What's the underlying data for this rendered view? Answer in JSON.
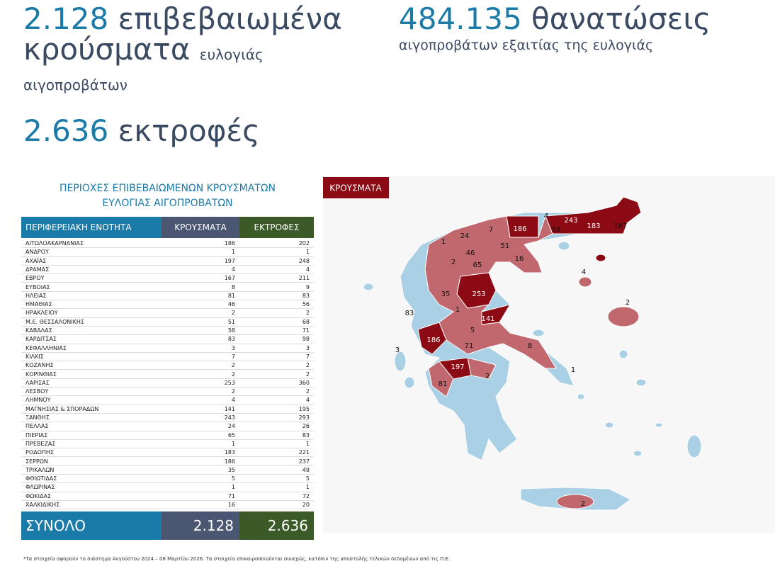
{
  "stats": [
    {
      "number": "2.128",
      "text": "επιβεβαιωμένα κρούσματα",
      "sub": "ευλογιάς αιγοπροβάτων"
    },
    {
      "number": "484.135",
      "text": "θανατώσεις",
      "sub": "αιγοπροβάτων εξαιτίας της ευλογιάς"
    },
    {
      "number": "2.636",
      "text": "εκτροφές"
    }
  ],
  "table": {
    "title": [
      "ΠΕΡΙΟΧΕΣ ΕΠΙΒΕΒΑΙΩΜΕΝΩΝ ΚΡΟΥΣΜΑΤΩΝ",
      "ΕΥΛΟΓΙΑΣ ΑΙΓΟΠΡΟΒΑΤΩΝ"
    ],
    "header": [
      "ΠΕΡΙΦΕΡΕΙΑΚΗ ΕΝΟΤΗΤΑ",
      "ΚΡΟΥΣΜΑΤΑ",
      "ΕΚΤΡΟΦΕΣ"
    ],
    "rows": [
      [
        "ΑΙΤΩΛΟΑΚΑΡΝΑΝΙΑΣ",
        186,
        202
      ],
      [
        "ΑΝΔΡΟΥ",
        1,
        1
      ],
      [
        "ΑΧΑΪΑΣ",
        197,
        248
      ],
      [
        "ΔΡΑΜΑΣ",
        4,
        4
      ],
      [
        "ΕΒΡΟΥ",
        167,
        211
      ],
      [
        "ΕΥΒΟΙΑΣ",
        8,
        9
      ],
      [
        "ΗΛΕΙΑΣ",
        81,
        83
      ],
      [
        "ΗΜΑΘΙΑΣ",
        46,
        56
      ],
      [
        "ΗΡΑΚΛΕΙΟΥ",
        2,
        2
      ],
      [
        "Μ.Ε. ΘΕΣΣΑΛΟΝΙΚΗΣ",
        51,
        68
      ],
      [
        "ΚΑΒΑΛΑΣ",
        58,
        71
      ],
      [
        "ΚΑΡΔΙΤΣΑΣ",
        83,
        98
      ],
      [
        "ΚΕΦΑΛΛΗΝΙΑΣ",
        3,
        3
      ],
      [
        "ΚΙΛΚΙΣ",
        7,
        7
      ],
      [
        "ΚΟΖΑΝΗΣ",
        2,
        2
      ],
      [
        "ΚΟΡΙΝΘΙΑΣ",
        2,
        2
      ],
      [
        "ΛΑΡΙΣΑΣ",
        253,
        360
      ],
      [
        "ΛΕΣΒΟΥ",
        2,
        2
      ],
      [
        "ΛΗΜΝΟΥ",
        4,
        4
      ],
      [
        "ΜΑΓΝΗΣΙΑΣ & ΣΠΟΡΑΔΩΝ",
        141,
        195
      ],
      [
        "ΞΑΝΘΗΣ",
        243,
        293
      ],
      [
        "ΠΕΛΛΑΣ",
        24,
        26
      ],
      [
        "ΠΙΕΡΙΑΣ",
        65,
        83
      ],
      [
        "ΠΡΕΒΕΖΑΣ",
        1,
        1
      ],
      [
        "ΡΟΔΟΠΗΣ",
        183,
        221
      ],
      [
        "ΣΕΡΡΩΝ",
        186,
        237
      ],
      [
        "ΤΡΙΚΑΛΩΝ",
        35,
        49
      ],
      [
        "ΦΘΙΩΤΙΔΑΣ",
        5,
        5
      ],
      [
        "ΦΛΩΡΙΝΑΣ",
        1,
        1
      ],
      [
        "ΦΩΚΙΔΑΣ",
        71,
        72
      ],
      [
        "ΧΑΛΚΙΔΙΚΗΣ",
        16,
        20
      ]
    ],
    "total": [
      "ΣΥΝΟΛΟ",
      "2.128",
      "2.636"
    ]
  },
  "map": {
    "legend": "ΚΡΟΥΣΜΑΤΑ",
    "labels": [
      4,
      186,
      243,
      58,
      183,
      167,
      7,
      24,
      1,
      46,
      51,
      2,
      65,
      16,
      4,
      35,
      253,
      2,
      1,
      83,
      141,
      5,
      186,
      71,
      8,
      3,
      197,
      2,
      1,
      81,
      2
    ]
  },
  "footnote": "*Τα στοιχεία αφορούν το διάστημα Αυγούστου 2024 – 08 Μαρτίου 2026. Τα στοιχεία επικαιροποιούνται συνεχώς, κατόπιν της αποστολής τελικών δεδομένων από τις Π.Ε."
}
